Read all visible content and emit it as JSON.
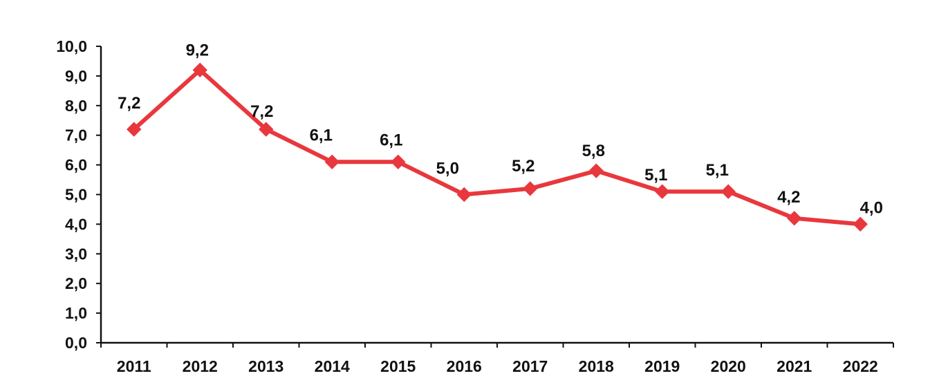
{
  "chart_data": {
    "type": "line",
    "title": "",
    "xlabel": "",
    "ylabel": "",
    "categories": [
      "2011",
      "2012",
      "2013",
      "2014",
      "2015",
      "2016",
      "2017",
      "2018",
      "2019",
      "2020",
      "2021",
      "2022"
    ],
    "series": [
      {
        "values": [
          7.2,
          9.2,
          7.2,
          6.1,
          6.1,
          5.0,
          5.2,
          5.8,
          5.1,
          5.1,
          4.2,
          4.0
        ],
        "labels": [
          "7,2",
          "9,2",
          "7,2",
          "6,1",
          "6,1",
          "5,0",
          "5,2",
          "5,8",
          "5,1",
          "5,1",
          "4,2",
          "4,0"
        ],
        "color": "#e8383d"
      }
    ],
    "ylim": [
      0,
      10
    ],
    "yticks": [
      0,
      1,
      2,
      3,
      4,
      5,
      6,
      7,
      8,
      9,
      10
    ],
    "ytick_labels": [
      "0,0",
      "1,0",
      "2,0",
      "3,0",
      "4,0",
      "5,0",
      "6,0",
      "7,0",
      "8,0",
      "9,0",
      "10,0"
    ],
    "grid": false,
    "legend": "none",
    "axis_color": "#111111"
  }
}
